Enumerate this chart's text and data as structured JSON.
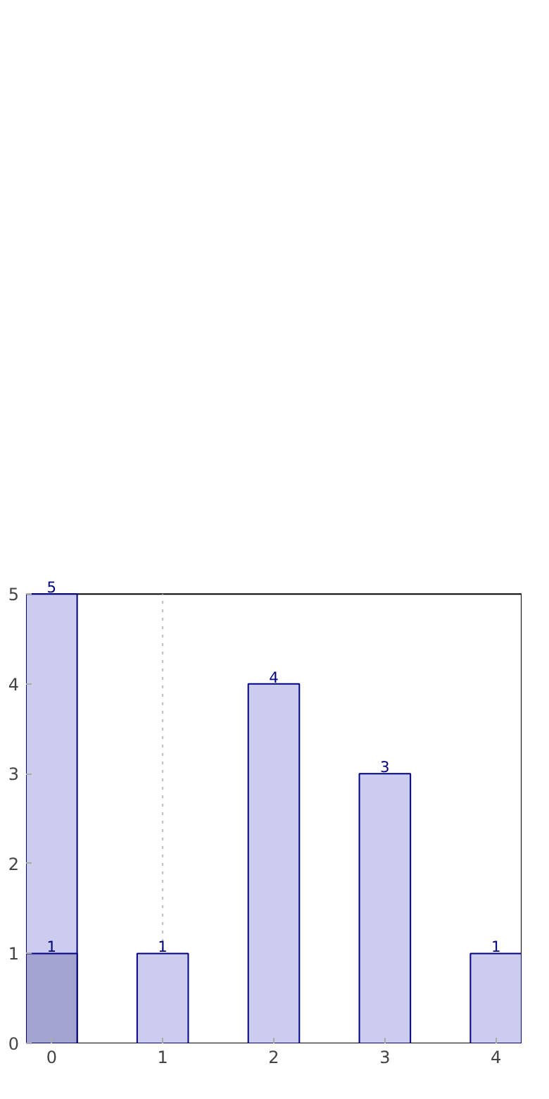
{
  "chart_data": {
    "type": "bar",
    "x": [
      0,
      1,
      2,
      3,
      4
    ],
    "series": [
      {
        "color": "#ccccee",
        "values": [
          5,
          1,
          4,
          3,
          1
        ]
      },
      {
        "color": "#a3a3d0",
        "values": [
          1,
          null,
          null,
          null,
          null
        ]
      }
    ],
    "xlim": [
      -0.23,
      4.23
    ],
    "ylim": [
      0,
      5
    ],
    "xticks": [
      0,
      1,
      2,
      3,
      4
    ],
    "yticks": [
      0,
      1,
      2,
      3,
      4,
      5
    ],
    "ref_lines": [
      {
        "axis": "x",
        "value": 1,
        "color": "#bbbbbb",
        "line_style": "dotted"
      }
    ],
    "data_labels": true,
    "grid": false
  }
}
